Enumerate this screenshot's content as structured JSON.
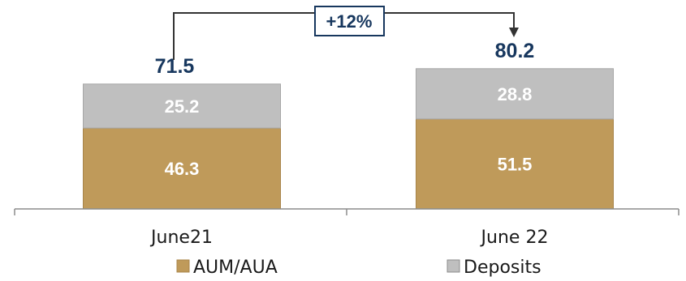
{
  "chart_data": {
    "type": "bar",
    "stacked": true,
    "categories": [
      "June21",
      "June 22"
    ],
    "series": [
      {
        "name": "AUM/AUA",
        "values": [
          46.3,
          51.5
        ],
        "color": "#bf9a5a"
      },
      {
        "name": "Deposits",
        "values": [
          25.2,
          28.8
        ],
        "color": "#bfbfbf"
      }
    ],
    "totals": [
      71.5,
      80.2
    ],
    "growth_label": "+12%",
    "legend_position": "bottom",
    "grid": false,
    "ylim": [
      0,
      80.2
    ]
  }
}
